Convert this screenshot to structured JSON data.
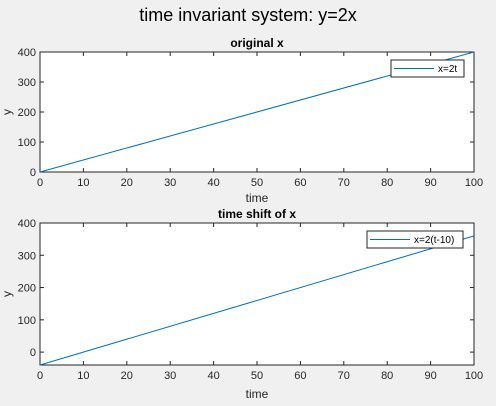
{
  "figure": {
    "title": "time invariant system: y=2x",
    "background": "#f0f0f0",
    "axes_color": "#262626",
    "series_color": "#0072bd"
  },
  "chart_data": [
    {
      "type": "line",
      "title": "original x",
      "xlabel": "time",
      "ylabel": "y",
      "xlim": [
        0,
        100
      ],
      "ylim": [
        0,
        400
      ],
      "xticks": [
        0,
        10,
        20,
        30,
        40,
        50,
        60,
        70,
        80,
        90,
        100
      ],
      "yticks": [
        0,
        100,
        200,
        300,
        400
      ],
      "grid": false,
      "legend_position": "top-right",
      "series": [
        {
          "name": "x=2t",
          "x": [
            0,
            100
          ],
          "y": [
            0,
            400
          ]
        }
      ]
    },
    {
      "type": "line",
      "title": "time shift of x",
      "xlabel": "time",
      "ylabel": "y",
      "xlim": [
        0,
        100
      ],
      "ylim": [
        -40,
        400
      ],
      "xticks": [
        0,
        10,
        20,
        30,
        40,
        50,
        60,
        70,
        80,
        90,
        100
      ],
      "yticks": [
        0,
        100,
        200,
        300,
        400
      ],
      "grid": false,
      "legend_position": "top-right",
      "series": [
        {
          "name": "x=2(t-10)",
          "x": [
            0,
            100
          ],
          "y": [
            -40,
            360
          ]
        }
      ]
    }
  ]
}
